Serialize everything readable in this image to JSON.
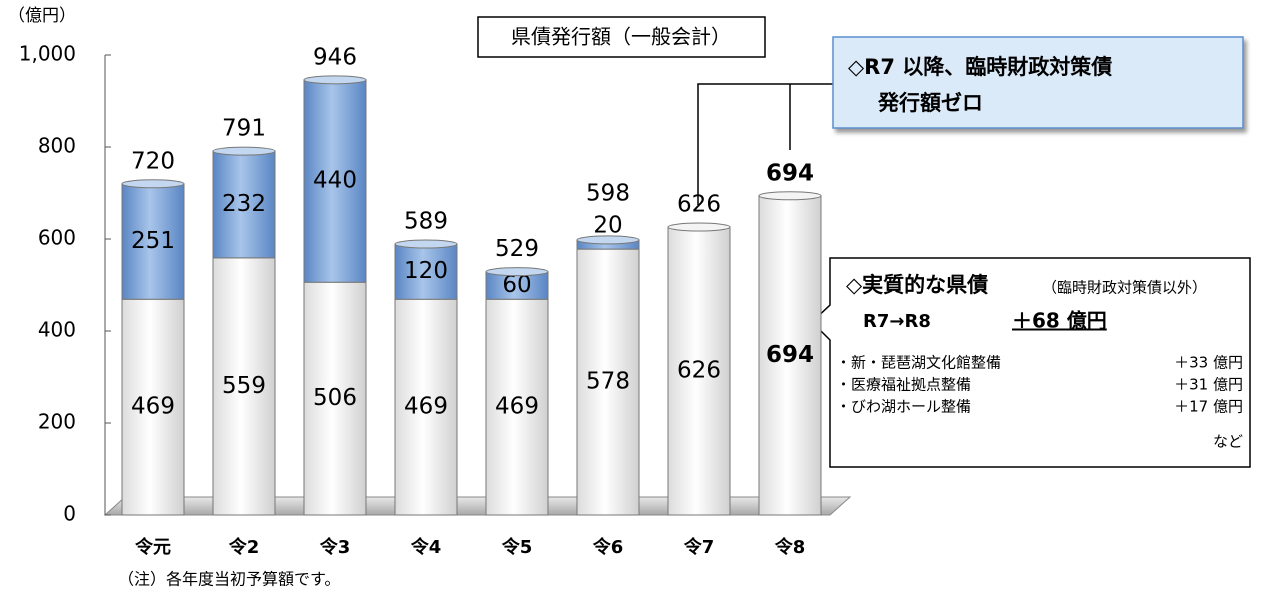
{
  "chart_data": {
    "type": "bar",
    "stacked": true,
    "title": "県債発行額（一般会計）",
    "y_label": "（億円）",
    "note": "（注）各年度当初予算額です。",
    "categories": [
      "令元",
      "令2",
      "令3",
      "令4",
      "令5",
      "令6",
      "令7",
      "令8"
    ],
    "series": [
      {
        "color": "#ffffff",
        "values": [
          469,
          559,
          506,
          469,
          469,
          578,
          626,
          694
        ]
      },
      {
        "color": "#7fa6d8",
        "values": [
          251,
          232,
          440,
          120,
          60,
          20,
          null,
          null
        ]
      }
    ],
    "totals": [
      720,
      791,
      946,
      589,
      529,
      598,
      626,
      694
    ],
    "ylim": [
      0,
      1000
    ],
    "yticks": [
      0,
      200,
      400,
      600,
      800,
      {
        "value": 1000,
        "label": "1,000"
      }
    ],
    "annotations": [
      {
        "lines": [
          "◇R7 以降、臨時財政対策債",
          "発行額ゼロ"
        ]
      },
      {
        "title": "◇実質的な県債",
        "subtitle": "（臨時財政対策債以外）",
        "change_label": "R7→R8",
        "change": "＋68 億円",
        "items": [
          {
            "label": "・新・琵琶湖文化館整備",
            "amount": "＋33 億円"
          },
          {
            "label": "・医療福祉拠点整備",
            "amount": "＋31 億円"
          },
          {
            "label": "・びわ湖ホール整備",
            "amount": "＋17 億円"
          }
        ],
        "footer": "など"
      }
    ]
  }
}
